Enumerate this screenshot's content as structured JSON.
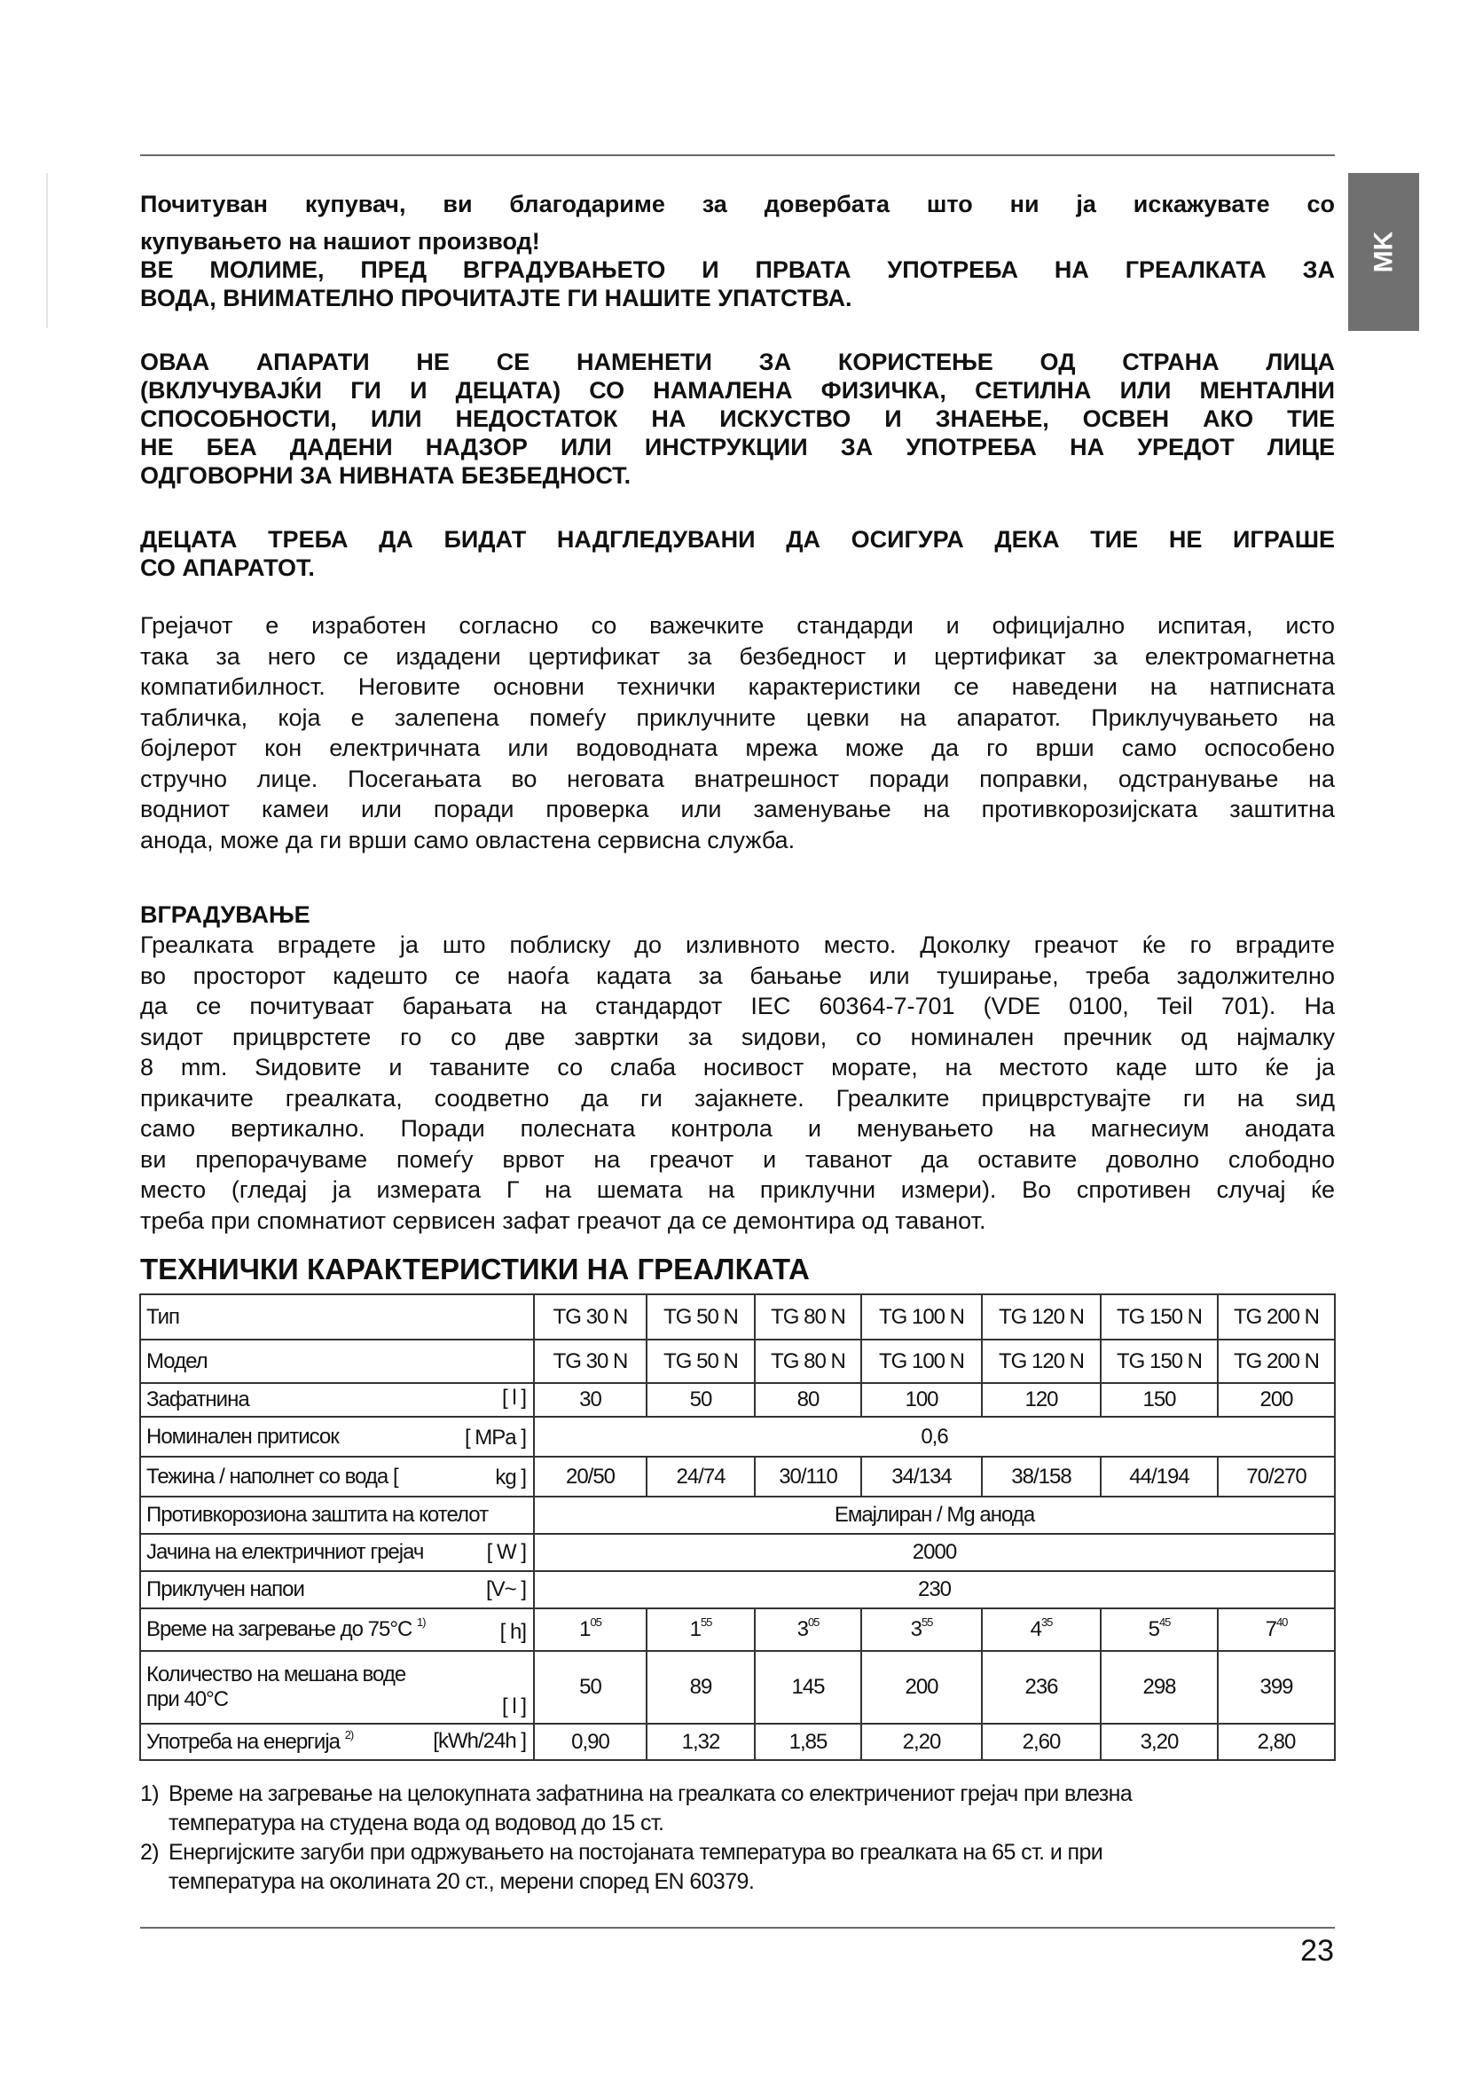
{
  "language_tab": "MK",
  "intro_bold": [
    "Почитуван купувач, ви благодариме за довербата што ни ја искажувате со",
    "купувањето на нашиот производ!",
    "ВЕ МОЛИМЕ, ПРЕД ВГРАДУВАЊЕТО И ПРВАТА УПОТРЕБА НА ГРЕАЛКАТА ЗА",
    "ВОДА, ВНИМАТЕЛНО ПРОЧИТАЈТЕ ГИ НАШИТЕ УПАТСТВА."
  ],
  "warning_bold": [
    "ОВАА АПАРАТИ НЕ СЕ НАМЕНЕТИ ЗА КОРИСТЕЊЕ ОД СТРАНА ЛИЦА",
    "(ВКЛУЧУВАЈЌИ ГИ И ДЕЦАТА) СО НАМАЛЕНА ФИЗИЧКА, СЕТИЛНА ИЛИ МЕНТАЛНИ",
    "СПОСОБНОСТИ, ИЛИ НЕДОСТАТОК НА ИСКУСТВО И ЗНАЕЊЕ, ОСВЕН АКО ТИЕ",
    "НЕ БЕА ДАДЕНИ НАДЗОР ИЛИ ИНСТРУКЦИИ ЗА УПОТРЕБА НА УРЕДОТ ЛИЦЕ",
    "ОДГОВОРНИ ЗА НИВНАТА БЕЗБЕДНОСТ."
  ],
  "children_bold": [
    "ДЕЦАТА ТРЕБА ДА БИДАТ НАДГЛЕДУВАНИ ДА ОСИГУРА ДЕКА ТИЕ НЕ ИГРАШЕ",
    "СО АПАРАТОТ."
  ],
  "general_paragraph": [
    "Грејачот е изработен согласно со важечките стандарди и официјално испитая, исто",
    "така за него се издадени цертификат за безбедност и цертификат за електромагнетна",
    "компатибилност. Неговите основни технички карактеристики се наведени на натписната",
    "табличка, која е залепена помеѓу приклучните цевки на апаратот. Приклучувањето на",
    "бојлерот кон електричната или водоводната мрежа може да го врши само оспособено",
    "стручно лице. Посегањата во неговата внатрешност поради поправки, одстранување на",
    "водниот камеи или поради проверка или заменување на противкорозијската заштитна",
    "анода, може да ги врши само овластена сервисна служба."
  ],
  "installation": {
    "heading": "ВГРАДУВАЊЕ",
    "lines": [
      "Греалката вградете ја што поблиску до изливното место. Доколку греачот ќе го вградите",
      "во просторот кадешто се наоѓа кадата за бањање или туширање, треба задолжително",
      "да се почитуваат  барањата на стандардот IEC 60364-7-701 (VDE 0100, Teil 701). На",
      "ѕидот прицврстете го со две завртки за ѕидови, со номинален пречник од најмалку",
      "8 mm. Ѕидовите и таваните со слаба носивост морате, на местото каде што ќе ја",
      "прикачите греалката, соодветно да ги зајакнете. Греалките прицврстувајте ги на ѕид",
      "само вертикално. Поради полесната контрола и менувањето на магнесиум анодата",
      "ви препорачуваме помеѓу врвот на греачот и таванот да оставите доволно слободно",
      "место (гледај ја измерата Г на шемата на приклучни измери). Во спротивен случај ќе",
      "треба при спомнатиот сервисен зафат греачот да се демонтира од таванот."
    ]
  },
  "specs": {
    "title": "ТЕХНИЧКИ КАРАКТЕРИСТИКИ НА ГРЕАЛКАТА",
    "rows": {
      "type": {
        "label": "Тип",
        "values": [
          "TG 30 N",
          "TG 50 N",
          "TG 80 N",
          "TG 100 N",
          "TG 120 N",
          "TG 150 N",
          "TG 200 N"
        ]
      },
      "model": {
        "label": "Модел",
        "values": [
          "TG 30 N",
          "TG 50 N",
          "TG 80 N",
          "TG 100 N",
          "TG 120 N",
          "TG 150 N",
          "TG 200 N"
        ]
      },
      "volume": {
        "label": "Зафатнина",
        "unit": "[ l ]",
        "values": [
          "30",
          "50",
          "80",
          "100",
          "120",
          "150",
          "200"
        ]
      },
      "pressure": {
        "label": "Номинален притисок",
        "unit": "[ MPa ]",
        "value": "0,6"
      },
      "weight": {
        "label": "Тежина / наполнет со вода [",
        "unit": "kg ]",
        "values": [
          "20/50",
          "24/74",
          "30/110",
          "34/134",
          "38/158",
          "44/194",
          "70/270"
        ]
      },
      "corrosion": {
        "label": "Противкорозиона заштита на котелот",
        "value": "Емајлиран / Mg анода"
      },
      "power": {
        "label": "Јачина на електричниот грејач",
        "unit": "[ W ]",
        "value": "2000"
      },
      "voltage": {
        "label": "Приклучен напои",
        "unit": "[V~ ]",
        "value": "230"
      },
      "heating_time": {
        "label": "Време на загревање до 75°C",
        "note": "1)",
        "unit": "[ h]",
        "values": [
          {
            "h": "1",
            "m": "05"
          },
          {
            "h": "1",
            "m": "55"
          },
          {
            "h": "3",
            "m": "05"
          },
          {
            "h": "3",
            "m": "55"
          },
          {
            "h": "4",
            "m": "35"
          },
          {
            "h": "5",
            "m": "45"
          },
          {
            "h": "7",
            "m": "40"
          }
        ]
      },
      "mixed_water": {
        "label_1": "Количество на мешана воде",
        "label_2": "при 40°C",
        "unit": "[ l ]",
        "values": [
          "50",
          "89",
          "145",
          "200",
          "236",
          "298",
          "399"
        ]
      },
      "energy": {
        "label": "Употреба на енергија",
        "note": "2)",
        "unit": "[kWh/24h ]",
        "values": [
          "0,90",
          "1,32",
          "1,85",
          "2,20",
          "2,60",
          "3,20",
          "2,80"
        ]
      }
    }
  },
  "footnotes": [
    {
      "num": "1)",
      "lines": [
        "Време на загревање на целокупната зафатнина на греалката со електричениот грејач при влезна",
        "температура на студена вода од водовод до 15 ст."
      ]
    },
    {
      "num": "2)",
      "lines": [
        "Енергијските загуби при одржувањето на постојаната температура во греалката на 65 ст. и при",
        "температура на околината 20 ст., мерени според EN 60379."
      ]
    }
  ],
  "page_number": "23"
}
